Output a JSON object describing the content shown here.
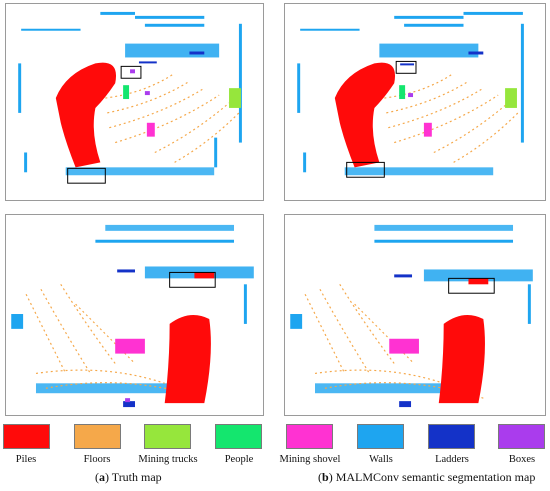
{
  "legend": {
    "items": [
      {
        "label": "Piles",
        "color": "#ff0a0a"
      },
      {
        "label": "Floors",
        "color": "#f5a84a"
      },
      {
        "label": "Mining trucks",
        "color": "#96e63c"
      },
      {
        "label": "People",
        "color": "#14e66e"
      },
      {
        "label": "Mining shovel",
        "color": "#ff32d2"
      },
      {
        "label": "Walls",
        "color": "#1ea5f0"
      },
      {
        "label": "Ladders",
        "color": "#1432c8"
      },
      {
        "label": "Boxes",
        "color": "#aa3ced"
      }
    ]
  },
  "captions": {
    "left_letter": "a",
    "left_text": "Truth map",
    "right_letter": "b",
    "right_text": "MALMConv semantic segmentation map"
  }
}
